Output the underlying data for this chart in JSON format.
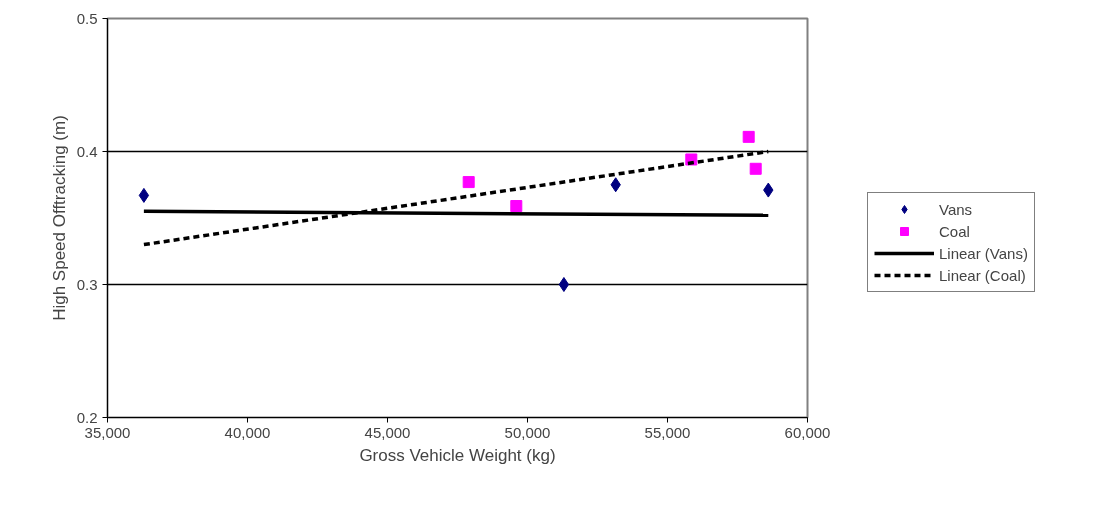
{
  "chart_data": {
    "type": "scatter",
    "xlabel": "Gross Vehicle Weight (kg)",
    "ylabel": "High Speed Offtracking (m)",
    "xlim": [
      35000,
      60000
    ],
    "ylim": [
      0.2,
      0.5
    ],
    "xticks": [
      {
        "value": 35000,
        "label": "35,000"
      },
      {
        "value": 40000,
        "label": "40,000"
      },
      {
        "value": 45000,
        "label": "45,000"
      },
      {
        "value": 50000,
        "label": "50,000"
      },
      {
        "value": 55000,
        "label": "55,000"
      },
      {
        "value": 60000,
        "label": "60,000"
      }
    ],
    "yticks": [
      0.2,
      0.3,
      0.4,
      0.5
    ],
    "grid": "y",
    "legend": "right",
    "series": [
      {
        "name": "Vans",
        "marker": "diamond",
        "color": "#000080",
        "x": [
          36300,
          51300,
          53150,
          58600
        ],
        "values": [
          0.367,
          0.3,
          0.375,
          0.371
        ]
      },
      {
        "name": "Coal",
        "marker": "square",
        "color": "#ff00ff",
        "x": [
          47900,
          49600,
          55850,
          57900,
          58150
        ],
        "values": [
          0.377,
          0.359,
          0.394,
          0.411,
          0.387
        ]
      },
      {
        "name": "Linear (Vans)",
        "type": "line",
        "line_style": "solid",
        "color": "#000000",
        "x": [
          36300,
          58600
        ],
        "values": [
          0.355,
          0.352
        ]
      },
      {
        "name": "Linear (Coal)",
        "type": "line",
        "line_style": "dashed",
        "color": "#000000",
        "x": [
          36300,
          58600
        ],
        "values": [
          0.33,
          0.4
        ]
      }
    ]
  }
}
